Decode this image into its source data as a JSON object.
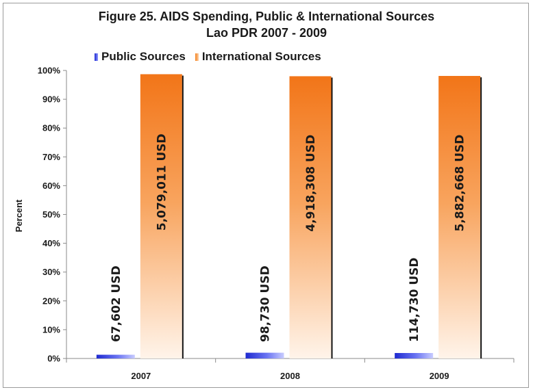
{
  "chart_data": {
    "type": "bar",
    "title": "Figure 25. AIDS Spending, Public & International Sources",
    "subtitle": "Lao PDR 2007 - 2009",
    "ylabel": "Percent",
    "xlabel": "",
    "categories": [
      "2007",
      "2008",
      "2009"
    ],
    "ylim": [
      0,
      100
    ],
    "yticks": [
      0,
      10,
      20,
      30,
      40,
      50,
      60,
      70,
      80,
      90,
      100
    ],
    "ytick_labels": [
      "0%",
      "10%",
      "20%",
      "30%",
      "40%",
      "50%",
      "60%",
      "70%",
      "80%",
      "90%",
      "100%"
    ],
    "grid": false,
    "legend_position": "top-left",
    "series": [
      {
        "name": "Public Sources",
        "color": "#3340d8",
        "values": [
          1.3,
          2.0,
          1.9
        ],
        "labels": [
          "67,602 USD",
          "98,730 USD",
          "114,730 USD"
        ]
      },
      {
        "name": "International Sources",
        "color": "#f58220",
        "values": [
          98.7,
          98.0,
          98.1
        ],
        "labels": [
          "5,079,011 USD",
          "4,918,308 USD",
          "5,882,668 USD"
        ]
      }
    ]
  }
}
